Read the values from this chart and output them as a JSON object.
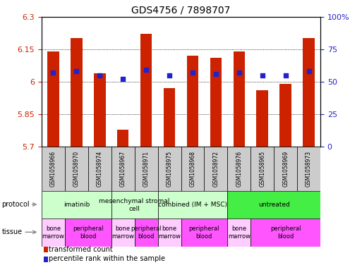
{
  "title": "GDS4756 / 7898707",
  "samples": [
    "GSM1058966",
    "GSM1058970",
    "GSM1058974",
    "GSM1058967",
    "GSM1058971",
    "GSM1058975",
    "GSM1058968",
    "GSM1058972",
    "GSM1058976",
    "GSM1058965",
    "GSM1058969",
    "GSM1058973"
  ],
  "bar_values": [
    6.14,
    6.2,
    6.04,
    5.78,
    6.22,
    5.97,
    6.12,
    6.11,
    6.14,
    5.96,
    5.99,
    6.2
  ],
  "dot_percentiles": [
    57,
    58,
    55,
    52,
    59,
    55,
    57,
    56,
    57,
    55,
    55,
    58
  ],
  "ylim_left": [
    5.7,
    6.3
  ],
  "ylim_right": [
    0,
    100
  ],
  "yticks_left": [
    5.7,
    5.85,
    6.0,
    6.15,
    6.3
  ],
  "ytick_labels_left": [
    "5.7",
    "5.85",
    "6",
    "6.15",
    "6.3"
  ],
  "yticks_right": [
    0,
    25,
    50,
    75,
    100
  ],
  "ytick_labels_right": [
    "0",
    "25",
    "50",
    "75",
    "100%"
  ],
  "bar_color": "#cc2200",
  "dot_color": "#2222cc",
  "bar_bottom": 5.7,
  "grid_lines": [
    5.85,
    6.0,
    6.15
  ],
  "protocols": [
    {
      "label": "imatinib",
      "start": 0,
      "end": 3
    },
    {
      "label": "mesenchymal stromal\ncell",
      "start": 3,
      "end": 5
    },
    {
      "label": "combined (IM + MSC)",
      "start": 5,
      "end": 8
    },
    {
      "label": "untreated",
      "start": 8,
      "end": 12
    }
  ],
  "protocol_colors": [
    "#ccffcc",
    "#ccffcc",
    "#ccffcc",
    "#44ee44"
  ],
  "tissues": [
    {
      "label": "bone\nmarrow",
      "start": 0,
      "end": 1
    },
    {
      "label": "peripheral\nblood",
      "start": 1,
      "end": 3
    },
    {
      "label": "bone\nmarrow",
      "start": 3,
      "end": 4
    },
    {
      "label": "peripheral\nblood",
      "start": 4,
      "end": 5
    },
    {
      "label": "bone\nmarrow",
      "start": 5,
      "end": 6
    },
    {
      "label": "peripheral\nblood",
      "start": 6,
      "end": 8
    },
    {
      "label": "bone\nmarrow",
      "start": 8,
      "end": 9
    },
    {
      "label": "peripheral\nblood",
      "start": 9,
      "end": 12
    }
  ],
  "tissue_colors": [
    "#ffccff",
    "#ff55ff",
    "#ffccff",
    "#ff55ff",
    "#ffccff",
    "#ff55ff",
    "#ffccff",
    "#ff55ff"
  ],
  "bg_color": "#ffffff",
  "left_tick_color": "#cc2200",
  "right_tick_color": "#2222cc",
  "sample_box_color": "#cccccc"
}
